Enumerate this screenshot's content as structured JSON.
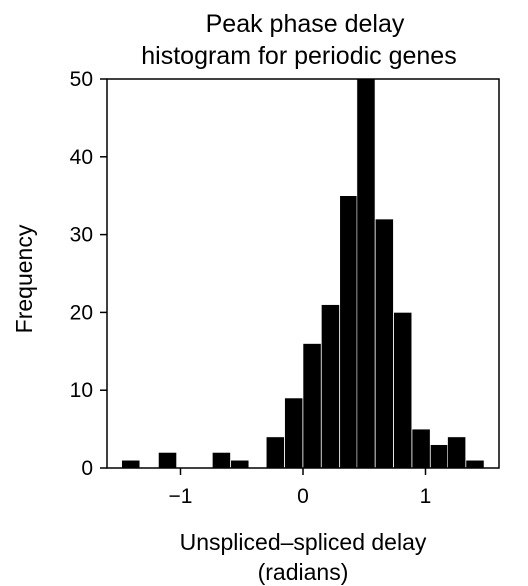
{
  "chart_data": {
    "type": "bar",
    "title_lines": [
      "Peak phase delay",
      "histogram for periodic genes"
    ],
    "xlabel_lines": [
      "Unspliced–spliced delay",
      "(radians)"
    ],
    "ylabel": "Frequency",
    "xlim": [
      -1.6,
      1.6
    ],
    "ylim": [
      0,
      50
    ],
    "bin_width": 0.148,
    "x_ticks": [
      -1,
      0,
      1
    ],
    "x_tick_labels": [
      "−1",
      "0",
      "1"
    ],
    "y_ticks": [
      0,
      10,
      20,
      30,
      40,
      50
    ],
    "y_tick_labels": [
      "0",
      "10",
      "20",
      "30",
      "40",
      "50"
    ],
    "bins": [
      {
        "x0": -1.48,
        "value": 1
      },
      {
        "x0": -1.18,
        "value": 2
      },
      {
        "x0": -0.74,
        "value": 2
      },
      {
        "x0": -0.59,
        "value": 1
      },
      {
        "x0": -0.3,
        "value": 4
      },
      {
        "x0": -0.15,
        "value": 9
      },
      {
        "x0": 0.0,
        "value": 16
      },
      {
        "x0": 0.15,
        "value": 21
      },
      {
        "x0": 0.3,
        "value": 35
      },
      {
        "x0": 0.44,
        "value": 50
      },
      {
        "x0": 0.59,
        "value": 32
      },
      {
        "x0": 0.74,
        "value": 20
      },
      {
        "x0": 0.89,
        "value": 5
      },
      {
        "x0": 1.04,
        "value": 3
      },
      {
        "x0": 1.18,
        "value": 4
      },
      {
        "x0": 1.33,
        "value": 1
      }
    ],
    "bar_color": "#000000",
    "bar_edge_color": "#ffffff",
    "grid": false,
    "legend": "none"
  }
}
